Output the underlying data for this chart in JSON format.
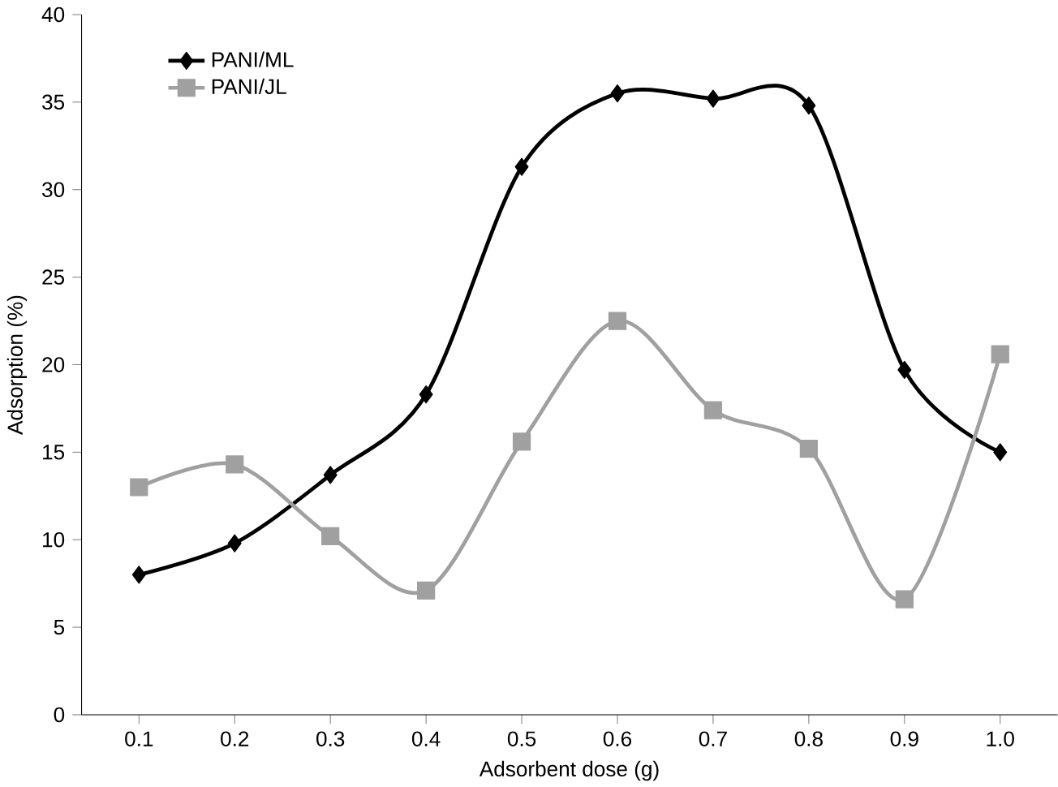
{
  "chart_data": {
    "type": "line",
    "xlabel": "Adsorbent dose (g)",
    "ylabel": "Adsorption (%)",
    "categories": [
      "0.1",
      "0.2",
      "0.3",
      "0.4",
      "0.5",
      "0.6",
      "0.7",
      "0.8",
      "0.9",
      "1.0"
    ],
    "ylim": [
      0,
      40
    ],
    "yticks": [
      0,
      5,
      10,
      15,
      20,
      25,
      30,
      35,
      40
    ],
    "legend": "top left",
    "grid": false,
    "series": [
      {
        "name": "PANI/ML",
        "color": "#000000",
        "marker": "diamond",
        "values": [
          8.0,
          9.8,
          13.7,
          18.3,
          31.3,
          35.5,
          35.2,
          34.8,
          19.7,
          15.0
        ]
      },
      {
        "name": "PANI/JL",
        "color": "#a0a0a0",
        "marker": "square",
        "values": [
          13.0,
          14.3,
          10.2,
          7.1,
          15.6,
          22.5,
          17.4,
          15.2,
          6.6,
          20.6
        ]
      }
    ]
  }
}
